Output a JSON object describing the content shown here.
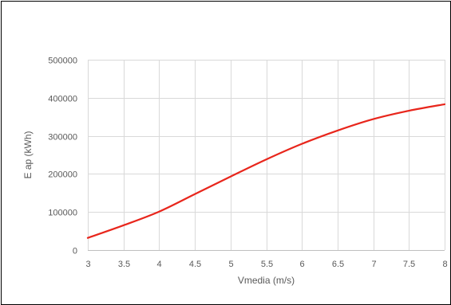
{
  "chart_data": {
    "type": "line",
    "title": "",
    "xlabel": "Vmedia (m/s)",
    "ylabel": "E ap (kWh)",
    "xlim": [
      3,
      8
    ],
    "ylim": [
      0,
      500000
    ],
    "x_ticks": [
      "3",
      "3.5",
      "4",
      "4.5",
      "5",
      "5.5",
      "6",
      "6.5",
      "7",
      "7.5",
      "8"
    ],
    "y_ticks": [
      "0",
      "100000",
      "200000",
      "300000",
      "400000",
      "500000"
    ],
    "grid": true,
    "legend": "none",
    "series": [
      {
        "color": "#e8261c",
        "x": [
          3,
          3.5,
          4,
          4.5,
          5,
          5.5,
          6,
          6.5,
          7,
          7.5,
          8
        ],
        "y": [
          32000,
          65000,
          101000,
          147000,
          193000,
          238000,
          279000,
          314000,
          344000,
          366000,
          383000
        ]
      }
    ]
  }
}
